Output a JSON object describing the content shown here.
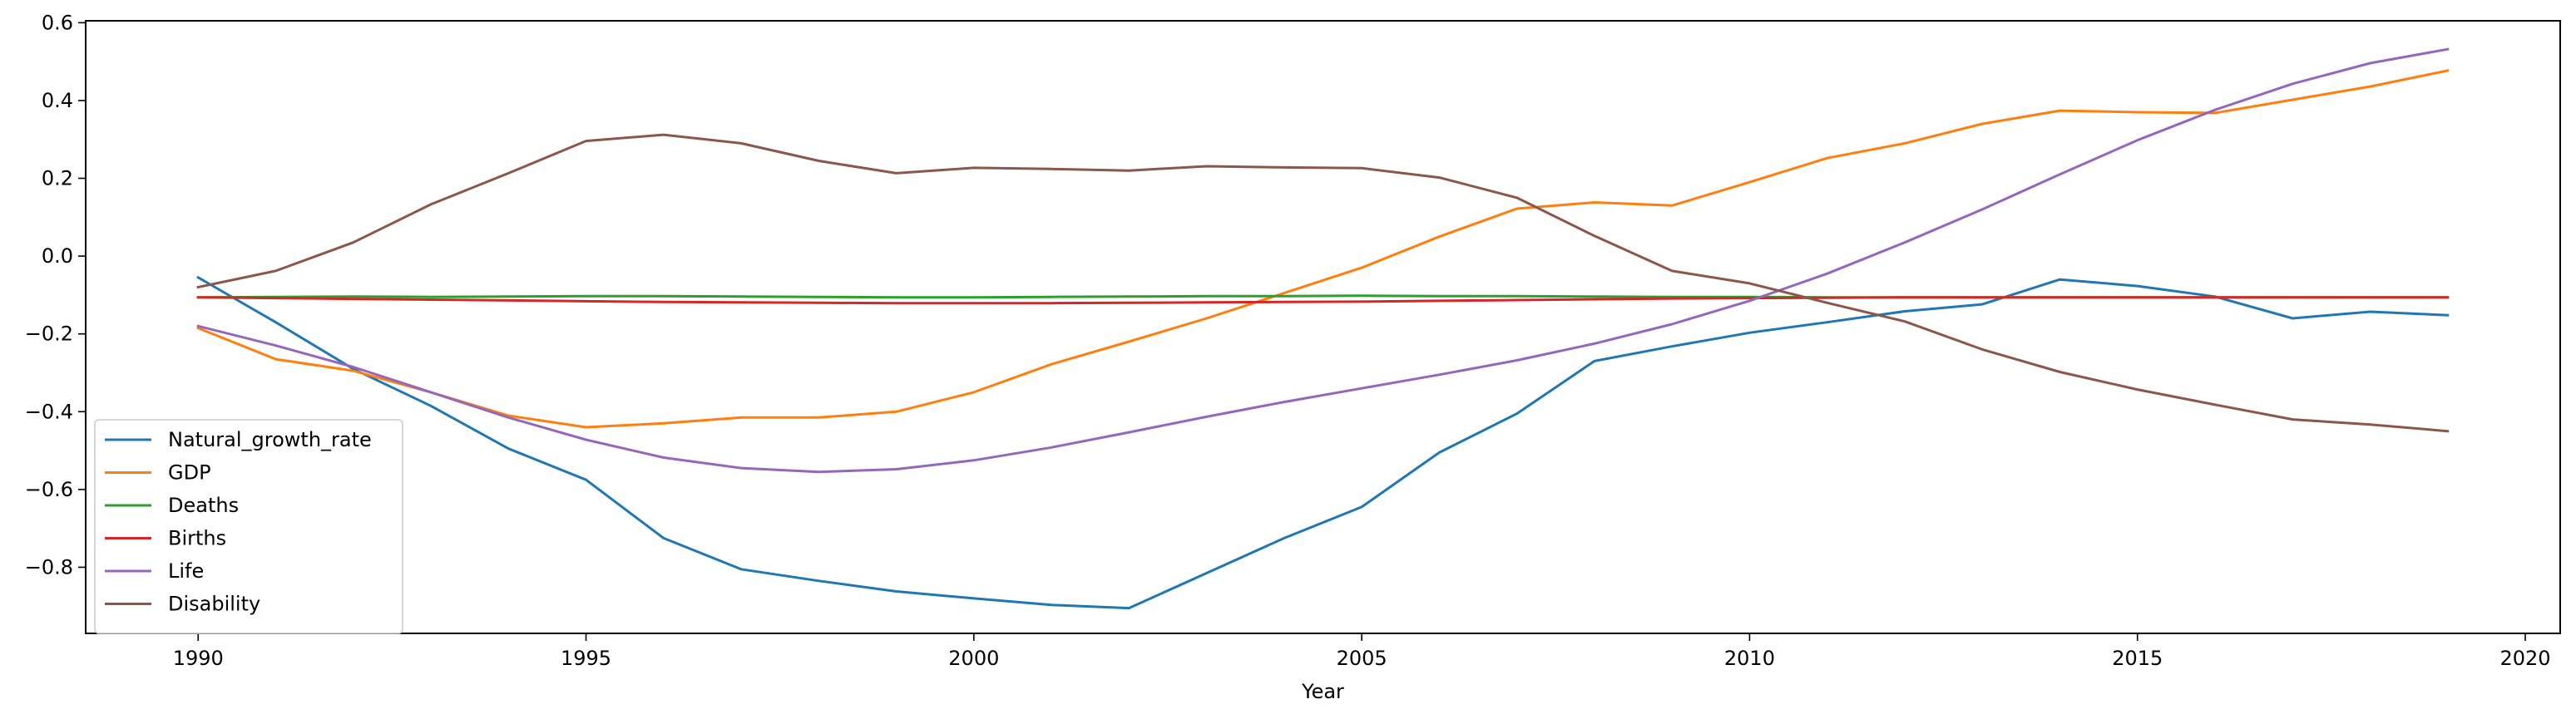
{
  "chart_data": {
    "type": "line",
    "title": "",
    "xlabel": "Year",
    "ylabel": "",
    "xlim": [
      1988.55,
      2020.45
    ],
    "ylim": [
      -0.97,
      0.605
    ],
    "xticks": [
      1990,
      1995,
      2000,
      2005,
      2010,
      2015,
      2020
    ],
    "yticks": [
      -0.8,
      -0.6,
      -0.4,
      -0.2,
      0.0,
      0.2,
      0.4,
      0.6
    ],
    "ytick_labels": [
      "−0.8",
      "−0.6",
      "−0.4",
      "−0.2",
      "0.0",
      "0.2",
      "0.4",
      "0.6"
    ],
    "grid": false,
    "legend_position": "lower-left",
    "x": [
      1990,
      1991,
      1992,
      1993,
      1994,
      1995,
      1996,
      1997,
      1998,
      1999,
      2000,
      2001,
      2002,
      2003,
      2004,
      2005,
      2006,
      2007,
      2008,
      2009,
      2010,
      2011,
      2012,
      2013,
      2014,
      2015,
      2016,
      2017,
      2018,
      2019
    ],
    "series": [
      {
        "name": "Natural_growth_rate",
        "color": "#1f77b4",
        "values": [
          -0.055,
          -0.17,
          -0.29,
          -0.385,
          -0.495,
          -0.575,
          -0.725,
          -0.805,
          -0.835,
          -0.862,
          -0.88,
          -0.897,
          -0.905,
          -0.815,
          -0.725,
          -0.645,
          -0.505,
          -0.405,
          -0.27,
          -0.232,
          -0.197,
          -0.17,
          -0.142,
          -0.124,
          -0.06,
          -0.077,
          -0.104,
          -0.16,
          -0.143,
          -0.152
        ]
      },
      {
        "name": "GDP",
        "color": "#ff7f0e",
        "values": [
          -0.185,
          -0.265,
          -0.295,
          -0.35,
          -0.41,
          -0.44,
          -0.43,
          -0.415,
          -0.415,
          -0.4,
          -0.35,
          -0.278,
          -0.22,
          -0.16,
          -0.095,
          -0.03,
          0.05,
          0.122,
          0.138,
          0.13,
          0.19,
          0.252,
          0.29,
          0.34,
          0.374,
          0.37,
          0.368,
          0.402,
          0.436,
          0.477
        ]
      },
      {
        "name": "Deaths",
        "color": "#2ca02c",
        "values": [
          -0.106,
          -0.105,
          -0.104,
          -0.105,
          -0.104,
          -0.103,
          -0.103,
          -0.104,
          -0.105,
          -0.106,
          -0.106,
          -0.105,
          -0.104,
          -0.103,
          -0.103,
          -0.102,
          -0.103,
          -0.103,
          -0.104,
          -0.105,
          -0.105,
          -0.106,
          -0.106,
          -0.106,
          -0.106,
          -0.106,
          -0.106,
          -0.106,
          -0.106,
          -0.106
        ]
      },
      {
        "name": "Births",
        "color": "#d62728",
        "values": [
          -0.106,
          -0.108,
          -0.11,
          -0.112,
          -0.114,
          -0.116,
          -0.118,
          -0.119,
          -0.12,
          -0.121,
          -0.121,
          -0.121,
          -0.12,
          -0.119,
          -0.118,
          -0.117,
          -0.115,
          -0.113,
          -0.111,
          -0.109,
          -0.108,
          -0.107,
          -0.106,
          -0.106,
          -0.106,
          -0.106,
          -0.106,
          -0.106,
          -0.106,
          -0.106
        ]
      },
      {
        "name": "Life",
        "color": "#9467bd",
        "values": [
          -0.18,
          -0.23,
          -0.285,
          -0.35,
          -0.415,
          -0.472,
          -0.518,
          -0.545,
          -0.555,
          -0.548,
          -0.525,
          -0.492,
          -0.453,
          -0.413,
          -0.375,
          -0.34,
          -0.305,
          -0.268,
          -0.225,
          -0.175,
          -0.115,
          -0.045,
          0.035,
          0.12,
          0.21,
          0.298,
          0.376,
          0.443,
          0.496,
          0.532
        ]
      },
      {
        "name": "Disability",
        "color": "#8c564b",
        "values": [
          -0.08,
          -0.038,
          0.035,
          0.133,
          0.213,
          0.296,
          0.312,
          0.29,
          0.245,
          0.213,
          0.227,
          0.224,
          0.22,
          0.231,
          0.228,
          0.226,
          0.202,
          0.15,
          0.052,
          -0.038,
          -0.07,
          -0.12,
          -0.168,
          -0.24,
          -0.298,
          -0.343,
          -0.382,
          -0.42,
          -0.433,
          -0.45
        ]
      }
    ]
  }
}
